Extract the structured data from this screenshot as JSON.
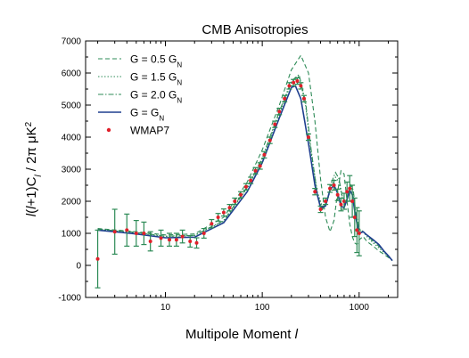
{
  "chart_data": {
    "type": "line",
    "title": "CMB Anisotropies",
    "xlabel": "Multipole Moment l",
    "ylabel": "l(l+1)C_l / 2π μK²",
    "xscale": "log",
    "xlim": [
      1.5,
      2500
    ],
    "ylim": [
      -1000,
      7000
    ],
    "x_ticks": [
      {
        "value": 10,
        "label": "10"
      },
      {
        "value": 100,
        "label": "100"
      },
      {
        "value": 1000,
        "label": "1000"
      }
    ],
    "y_ticks": [
      {
        "value": -1000,
        "label": "-1000"
      },
      {
        "value": 0,
        "label": "0"
      },
      {
        "value": 1000,
        "label": "1000"
      },
      {
        "value": 2000,
        "label": "2000"
      },
      {
        "value": 3000,
        "label": "3000"
      },
      {
        "value": 4000,
        "label": "4000"
      },
      {
        "value": 5000,
        "label": "5000"
      },
      {
        "value": 6000,
        "label": "6000"
      },
      {
        "value": 7000,
        "label": "7000"
      }
    ],
    "grid": false,
    "legend_position": "top-left",
    "legend": [
      {
        "series": "G = 0.5 G_N",
        "main": "G = 0.5 G",
        "sub": "N",
        "style": "dashed",
        "color": "#2e8b57"
      },
      {
        "series": "G = 1.5 G_N",
        "main": "G = 1.5 G",
        "sub": "N",
        "style": "dotted",
        "color": "#2e8b57"
      },
      {
        "series": "G = 2.0 G_N",
        "main": "G = 2.0 G",
        "sub": "N",
        "style": "dashdot",
        "color": "#2e8b57"
      },
      {
        "series": "G = G_N",
        "main": "G = G",
        "sub": "N",
        "style": "solid",
        "color": "#1f3f8f"
      },
      {
        "series": "WMAP7",
        "main": "WMAP7",
        "sub": "",
        "style": "marker",
        "color": "#e0202a"
      }
    ],
    "series": [
      {
        "name": "G = 0.5 G_N",
        "color": "#2e8b57",
        "style": "dashed",
        "x": [
          2,
          5,
          10,
          20,
          40,
          70,
          100,
          150,
          200,
          250,
          300,
          350,
          400,
          450,
          500,
          550,
          600,
          650,
          700,
          750,
          800,
          850,
          900,
          950,
          1000,
          1100,
          1200,
          1400,
          1600,
          1800,
          2000,
          2200
        ],
        "y": [
          1150,
          1050,
          950,
          980,
          1500,
          2600,
          3600,
          5000,
          6100,
          6550,
          6000,
          4500,
          2700,
          1500,
          1050,
          1400,
          2300,
          2950,
          2850,
          2000,
          1300,
          900,
          700,
          650,
          800,
          900,
          750,
          600,
          450,
          350,
          250,
          150
        ]
      },
      {
        "name": "G = 1.5 G_N",
        "color": "#2e8b57",
        "style": "dotted",
        "x": [
          2,
          5,
          10,
          20,
          40,
          70,
          100,
          150,
          200,
          240,
          280,
          320,
          370,
          420,
          470,
          520,
          570,
          620,
          670,
          720,
          770,
          820,
          870,
          920,
          1000,
          1100,
          1200,
          1400,
          1600,
          1800,
          2000,
          2200
        ],
        "y": [
          1120,
          1020,
          900,
          930,
          1380,
          2400,
          3300,
          4700,
          5700,
          5900,
          5000,
          3500,
          2300,
          1800,
          2000,
          2500,
          2750,
          2600,
          2100,
          1950,
          2200,
          2450,
          2200,
          1600,
          1100,
          1050,
          900,
          700,
          550,
          400,
          280,
          150
        ]
      },
      {
        "name": "G = 2.0 G_N",
        "color": "#2e8b57",
        "style": "dashdot",
        "x": [
          2,
          5,
          10,
          20,
          40,
          70,
          100,
          150,
          200,
          240,
          280,
          320,
          370,
          420,
          470,
          520,
          570,
          620,
          670,
          720,
          770,
          820,
          870,
          920,
          1000,
          1100,
          1200,
          1400,
          1600,
          1800,
          2000,
          2200
        ],
        "y": [
          1130,
          1030,
          910,
          940,
          1400,
          2450,
          3350,
          4800,
          5750,
          5950,
          5100,
          3600,
          2200,
          1750,
          2050,
          2600,
          2900,
          2700,
          2150,
          1900,
          2150,
          2500,
          2350,
          1700,
          1150,
          1050,
          950,
          750,
          600,
          450,
          300,
          150
        ]
      },
      {
        "name": "G = G_N",
        "color": "#1f3f8f",
        "style": "solid",
        "x": [
          2,
          5,
          10,
          20,
          40,
          70,
          100,
          150,
          200,
          220,
          250,
          300,
          350,
          400,
          450,
          500,
          550,
          600,
          650,
          700,
          750,
          800,
          850,
          900,
          950,
          1000,
          1100,
          1200,
          1400,
          1600,
          1800,
          2000,
          2200
        ],
        "y": [
          1100,
          980,
          860,
          880,
          1330,
          2300,
          3200,
          4600,
          5550,
          5600,
          5200,
          3800,
          2500,
          1800,
          1850,
          2350,
          2500,
          2250,
          1850,
          1800,
          2050,
          2350,
          2200,
          1700,
          1300,
          1000,
          1050,
          950,
          800,
          650,
          450,
          300,
          150
        ]
      }
    ],
    "wmap7": {
      "name": "WMAP7",
      "color": "#e0202a",
      "errorbar_color": "#2e8b57",
      "x": [
        2,
        3,
        4,
        5,
        6,
        7,
        9,
        11,
        13,
        15,
        18,
        21,
        25,
        30,
        35,
        40,
        46,
        52,
        60,
        68,
        76,
        85,
        95,
        105,
        120,
        135,
        150,
        170,
        190,
        210,
        230,
        250,
        270,
        300,
        350,
        400,
        450,
        500,
        550,
        600,
        650,
        700,
        750,
        800,
        850,
        900,
        950,
        1000
      ],
      "y": [
        200,
        1050,
        1100,
        1000,
        1000,
        750,
        850,
        800,
        800,
        900,
        750,
        700,
        1000,
        1300,
        1500,
        1650,
        1800,
        2000,
        2200,
        2450,
        2650,
        2950,
        3100,
        3450,
        3900,
        4400,
        4800,
        5200,
        5600,
        5700,
        5750,
        5600,
        5200,
        4000,
        2300,
        1750,
        2000,
        2400,
        2500,
        2200,
        1900,
        2000,
        2300,
        2400,
        2000,
        1500,
        1100,
        1000
      ],
      "err": [
        900,
        700,
        500,
        400,
        350,
        300,
        250,
        200,
        200,
        200,
        180,
        160,
        150,
        130,
        120,
        110,
        100,
        100,
        100,
        100,
        100,
        100,
        100,
        100,
        100,
        100,
        100,
        100,
        100,
        100,
        100,
        100,
        100,
        100,
        100,
        100,
        100,
        120,
        150,
        180,
        200,
        250,
        300,
        400,
        500,
        600,
        700,
        700
      ]
    }
  }
}
